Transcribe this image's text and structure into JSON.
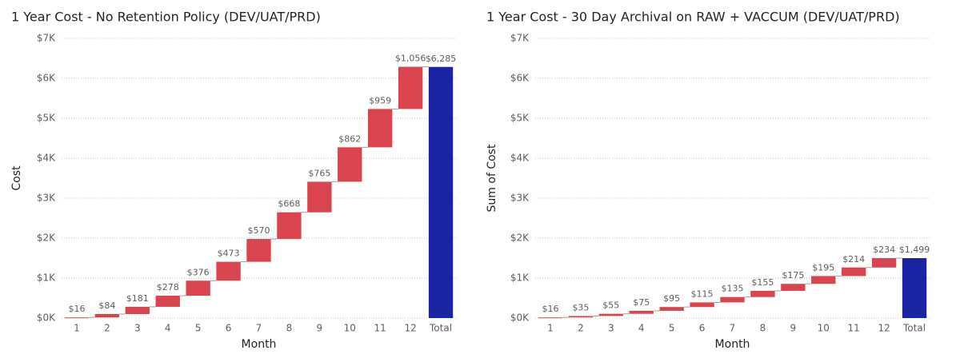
{
  "chart_data": [
    {
      "type": "waterfall",
      "title": "1 Year Cost - No Retention Policy (DEV/UAT/PRD)",
      "x_label": "Month",
      "y_label": "Cost",
      "categories": [
        "1",
        "2",
        "3",
        "4",
        "5",
        "6",
        "7",
        "8",
        "9",
        "10",
        "11",
        "12"
      ],
      "values": [
        16,
        84,
        181,
        278,
        376,
        473,
        570,
        668,
        765,
        862,
        959,
        1056
      ],
      "value_labels": [
        "$16",
        "$84",
        "$181",
        "$278",
        "$376",
        "$473",
        "$570",
        "$668",
        "$765",
        "$862",
        "$959",
        "$1,056"
      ],
      "total": {
        "label": "Total",
        "value": 6285,
        "value_label": "$6,285"
      },
      "color": "#d9444f",
      "total_color": "#1a24a3",
      "ylim": [
        0,
        7000
      ],
      "yticks": [
        {
          "value": 0,
          "label": "$0K"
        },
        {
          "value": 1000,
          "label": "$1K"
        },
        {
          "value": 2000,
          "label": "$2K"
        },
        {
          "value": 3000,
          "label": "$3K"
        },
        {
          "value": 4000,
          "label": "$4K"
        },
        {
          "value": 5000,
          "label": "$5K"
        },
        {
          "value": 6000,
          "label": "$6K"
        },
        {
          "value": 7000,
          "label": "$7K"
        }
      ],
      "grid": true
    },
    {
      "type": "waterfall",
      "title": "1 Year Cost - 30 Day Archival on RAW + VACCUM (DEV/UAT/PRD)",
      "x_label": "Month",
      "y_label": "Sum of Cost",
      "categories": [
        "1",
        "2",
        "3",
        "4",
        "5",
        "6",
        "7",
        "8",
        "9",
        "10",
        "11",
        "12"
      ],
      "values": [
        16,
        35,
        55,
        75,
        95,
        115,
        135,
        155,
        175,
        195,
        214,
        234
      ],
      "value_labels": [
        "$16",
        "$35",
        "$55",
        "$75",
        "$95",
        "$115",
        "$135",
        "$155",
        "$175",
        "$195",
        "$214",
        "$234"
      ],
      "total": {
        "label": "Total",
        "value": 1499,
        "value_label": "$1,499"
      },
      "color": "#d9444f",
      "total_color": "#1a24a3",
      "ylim": [
        0,
        7000
      ],
      "yticks": [
        {
          "value": 0,
          "label": "$0K"
        },
        {
          "value": 1000,
          "label": "$1K"
        },
        {
          "value": 2000,
          "label": "$2K"
        },
        {
          "value": 3000,
          "label": "$3K"
        },
        {
          "value": 4000,
          "label": "$4K"
        },
        {
          "value": 5000,
          "label": "$5K"
        },
        {
          "value": 6000,
          "label": "$6K"
        },
        {
          "value": 7000,
          "label": "$7K"
        }
      ],
      "grid": true
    }
  ]
}
